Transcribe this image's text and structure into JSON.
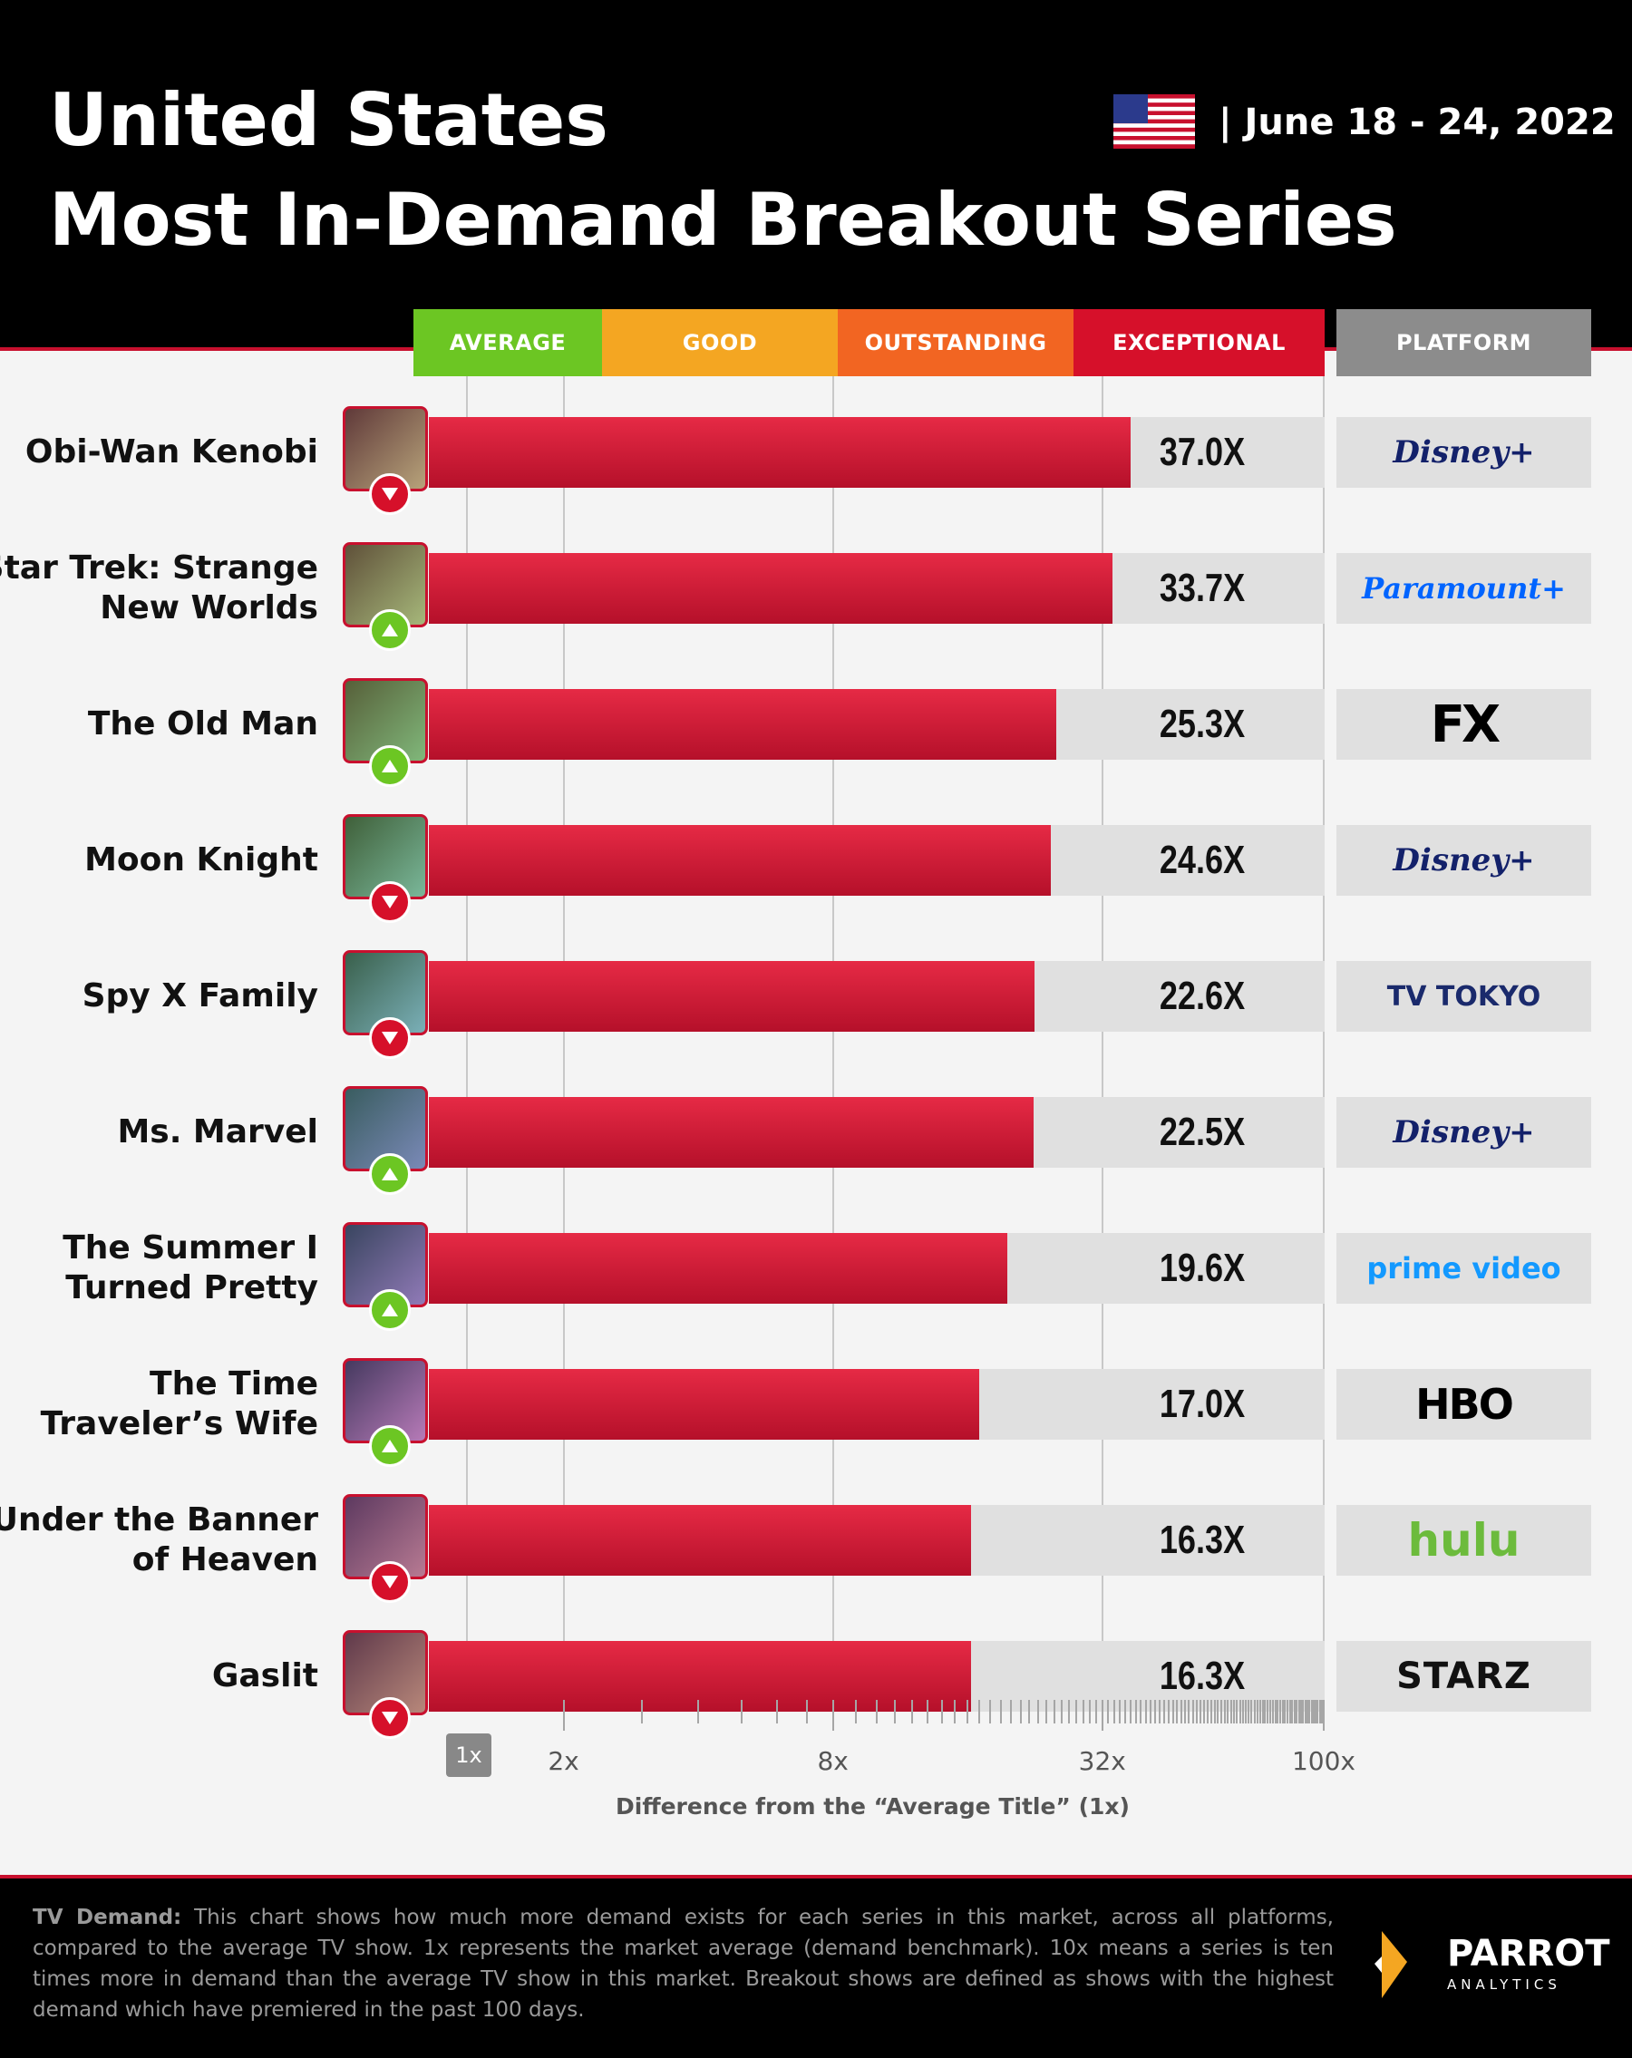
{
  "header": {
    "title_line1": "United States",
    "title_line2": "Most In-Demand Breakout Series",
    "date": "| June 18 - 24, 2022",
    "flag_icon": "us-flag-icon"
  },
  "tiers": [
    {
      "label": "AVERAGE",
      "color": "#6cc623"
    },
    {
      "label": "GOOD",
      "color": "#f4a622"
    },
    {
      "label": "OUTSTANDING",
      "color": "#f26522"
    },
    {
      "label": "EXCEPTIONAL",
      "color": "#d6102a"
    }
  ],
  "platform_header": "PLATFORM",
  "chart_data": {
    "type": "bar",
    "orientation": "horizontal",
    "scale": "log",
    "xlim": [
      1,
      100
    ],
    "x_ticks": [
      "1x",
      "2x",
      "8x",
      "32x",
      "100x"
    ],
    "xlabel": "Difference from the “Average Title” (1x)",
    "categories": [
      "Obi-Wan Kenobi",
      "Star Trek: Strange New Worlds",
      "The Old Man",
      "Moon Knight",
      "Spy X Family",
      "Ms. Marvel",
      "The Summer I Turned Pretty",
      "The Time Traveler’s Wife",
      "Under the Banner of Heaven",
      "Gaslit"
    ],
    "values": [
      37.0,
      33.7,
      25.3,
      24.6,
      22.6,
      22.5,
      19.6,
      17.0,
      16.3,
      16.3
    ],
    "value_labels": [
      "37.0X",
      "33.7X",
      "25.3X",
      "24.6X",
      "22.6X",
      "22.5X",
      "19.6X",
      "17.0X",
      "16.3X",
      "16.3X"
    ],
    "trends": [
      "down",
      "up",
      "up",
      "down",
      "down",
      "up",
      "up",
      "up",
      "down",
      "down"
    ],
    "platforms": [
      "Disney+",
      "Paramount+",
      "FX",
      "Disney+",
      "TV TOKYO",
      "Disney+",
      "prime video",
      "HBO",
      "hulu",
      "STARZ"
    ]
  },
  "rows": [
    {
      "label_lines": [
        "Obi-Wan Kenobi"
      ]
    },
    {
      "label_lines": [
        "Star Trek: Strange",
        "New Worlds"
      ]
    },
    {
      "label_lines": [
        "The Old Man"
      ]
    },
    {
      "label_lines": [
        "Moon Knight"
      ]
    },
    {
      "label_lines": [
        "Spy X Family"
      ]
    },
    {
      "label_lines": [
        "Ms. Marvel"
      ]
    },
    {
      "label_lines": [
        "The Summer I",
        "Turned Pretty"
      ]
    },
    {
      "label_lines": [
        "The Time",
        "Traveler’s Wife"
      ]
    },
    {
      "label_lines": [
        "Under the Banner",
        "of Heaven"
      ]
    },
    {
      "label_lines": [
        "Gaslit"
      ]
    }
  ],
  "footer": {
    "label": "TV Demand:",
    "text": "This chart shows how much more demand exists for each series in this market, across all platforms, compared to the average TV show. 1x represents the market average (demand benchmark). 10x means a series is ten times more in demand than the average TV show in this market.  Breakout shows are defined as shows with the highest demand which have premiered in the past 100 days.",
    "brand": "PARROT",
    "brand_sub": "ANALYTICS"
  },
  "colors": {
    "bar": "#c8102e",
    "up": "#6cc623",
    "down": "#d6102a",
    "track": "#e0e0e0"
  }
}
